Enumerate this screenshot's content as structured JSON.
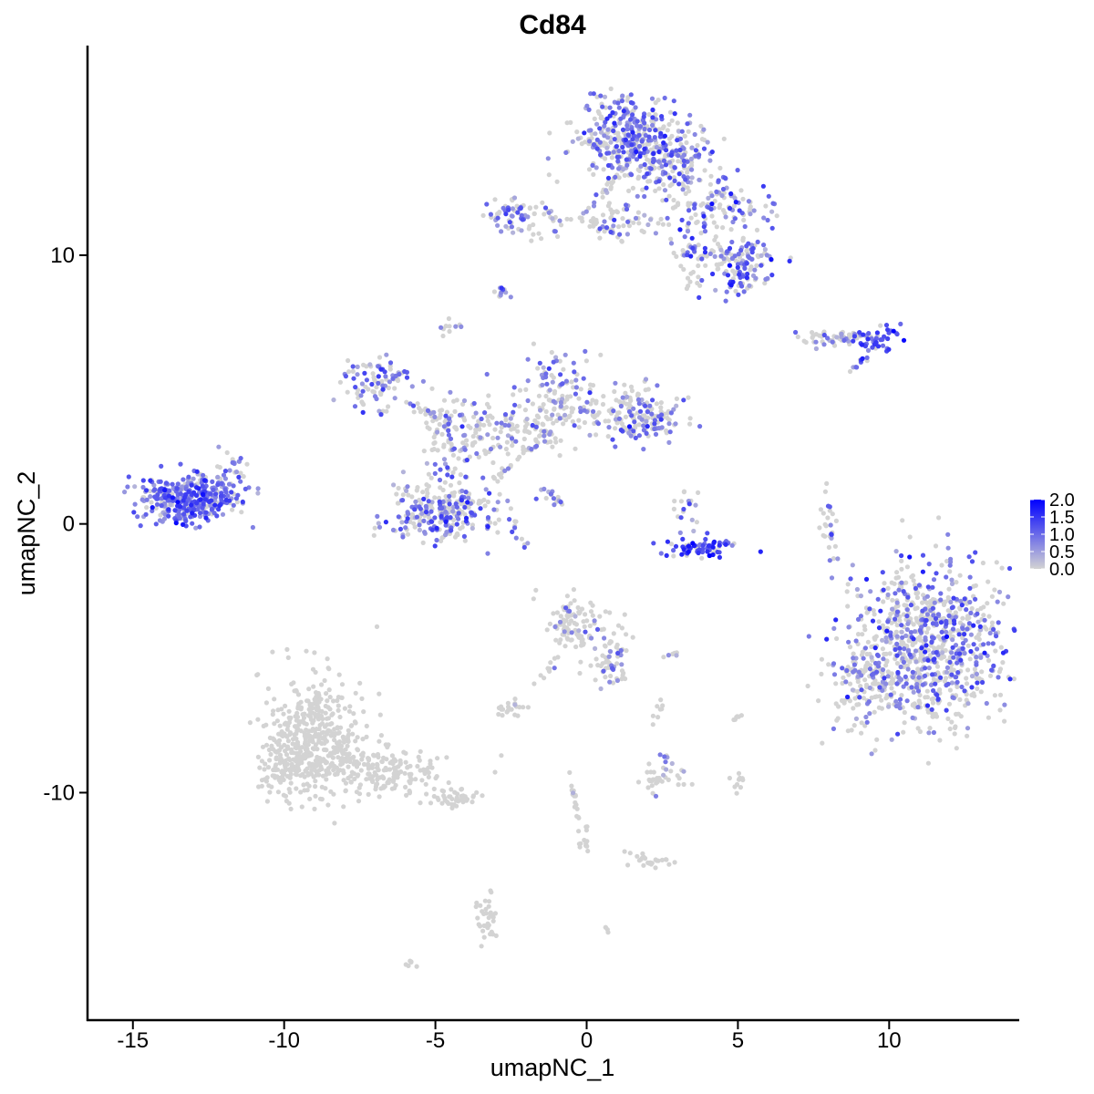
{
  "chart_data": {
    "type": "scatter",
    "title": "Cd84",
    "xlabel": "umapNC_1",
    "ylabel": "umapNC_2",
    "xlim": [
      -16.5,
      14.3
    ],
    "ylim": [
      -18.5,
      17.8
    ],
    "x_ticks": [
      -15,
      -10,
      -5,
      0,
      5,
      10
    ],
    "y_ticks": [
      -10,
      0,
      10
    ],
    "x_tick_labels": [
      "-15",
      "-10",
      "-5",
      "0",
      "5",
      "10"
    ],
    "y_tick_labels": [
      "-10",
      "0",
      "10"
    ],
    "grid": false,
    "legend": {
      "placement": "right",
      "labels": [
        "2.0",
        "1.5",
        "1.0",
        "0.5",
        "0.0"
      ],
      "range": [
        0.0,
        2.0
      ],
      "color_low": "#d3d3d3",
      "color_high": "#0000ff"
    },
    "clusters": [
      {
        "cx": -13.2,
        "cy": 0.9,
        "sx": 0.8,
        "sy": 0.45,
        "n": 360,
        "expr_prob": 0.85,
        "expr_mean": 1.0
      },
      {
        "cx": -11.8,
        "cy": 1.8,
        "sx": 0.4,
        "sy": 0.4,
        "n": 40,
        "expr_prob": 0.7,
        "expr_mean": 0.9
      },
      {
        "cx": -4.8,
        "cy": 0.5,
        "sx": 0.9,
        "sy": 0.55,
        "n": 260,
        "expr_prob": 0.45,
        "expr_mean": 0.9
      },
      {
        "cx": -4.3,
        "cy": 3.2,
        "sx": 0.6,
        "sy": 0.9,
        "n": 110,
        "expr_prob": 0.35,
        "expr_mean": 0.8
      },
      {
        "cx": -7.0,
        "cy": 5.3,
        "sx": 0.6,
        "sy": 0.5,
        "n": 90,
        "expr_prob": 0.6,
        "expr_mean": 0.9
      },
      {
        "cx": -2.0,
        "cy": 3.6,
        "sx": 1.1,
        "sy": 0.5,
        "n": 110,
        "expr_prob": 0.25,
        "expr_mean": 0.8
      },
      {
        "cx": -1.0,
        "cy": 5.3,
        "sx": 0.6,
        "sy": 0.6,
        "n": 70,
        "expr_prob": 0.5,
        "expr_mean": 0.9
      },
      {
        "cx": 0.6,
        "cy": 4.2,
        "sx": 1.2,
        "sy": 0.5,
        "n": 120,
        "expr_prob": 0.25,
        "expr_mean": 0.8
      },
      {
        "cx": 2.0,
        "cy": 4.0,
        "sx": 0.5,
        "sy": 0.5,
        "n": 90,
        "expr_prob": 0.5,
        "expr_mean": 0.9
      },
      {
        "cx": -2.4,
        "cy": 11.5,
        "sx": 0.5,
        "sy": 0.4,
        "n": 60,
        "expr_prob": 0.55,
        "expr_mean": 0.9
      },
      {
        "cx": -1.2,
        "cy": 11.3,
        "sx": 0.4,
        "sy": 0.3,
        "n": 20,
        "expr_prob": 0.3,
        "expr_mean": 0.8
      },
      {
        "cx": 1.2,
        "cy": 14.3,
        "sx": 0.8,
        "sy": 0.8,
        "n": 300,
        "expr_prob": 0.55,
        "expr_mean": 0.9
      },
      {
        "cx": 2.8,
        "cy": 13.5,
        "sx": 0.7,
        "sy": 0.8,
        "n": 200,
        "expr_prob": 0.45,
        "expr_mean": 0.9
      },
      {
        "cx": 1.2,
        "cy": 11.3,
        "sx": 0.8,
        "sy": 0.35,
        "n": 60,
        "expr_prob": 0.4,
        "expr_mean": 0.8
      },
      {
        "cx": 4.5,
        "cy": 11.8,
        "sx": 0.9,
        "sy": 0.4,
        "n": 90,
        "expr_prob": 0.5,
        "expr_mean": 0.9
      },
      {
        "cx": 5.2,
        "cy": 9.7,
        "sx": 0.5,
        "sy": 0.5,
        "n": 110,
        "expr_prob": 0.55,
        "expr_mean": 1.0
      },
      {
        "cx": 3.8,
        "cy": 10.2,
        "sx": 0.6,
        "sy": 0.7,
        "n": 80,
        "expr_prob": 0.4,
        "expr_mean": 0.9
      },
      {
        "cx": -2.8,
        "cy": 8.6,
        "sx": 0.15,
        "sy": 0.1,
        "n": 12,
        "expr_prob": 0.7,
        "expr_mean": 0.9
      },
      {
        "cx": -4.5,
        "cy": 7.3,
        "sx": 0.15,
        "sy": 0.2,
        "n": 10,
        "expr_prob": 0.3,
        "expr_mean": 0.8
      },
      {
        "cx": 8.0,
        "cy": 6.9,
        "sx": 0.6,
        "sy": 0.15,
        "n": 40,
        "expr_prob": 0.3,
        "expr_mean": 0.8
      },
      {
        "cx": 9.6,
        "cy": 6.9,
        "sx": 0.35,
        "sy": 0.25,
        "n": 45,
        "expr_prob": 0.75,
        "expr_mean": 1.2
      },
      {
        "cx": 3.6,
        "cy": -0.9,
        "sx": 0.75,
        "sy": 0.2,
        "n": 70,
        "expr_prob": 0.8,
        "expr_mean": 1.3
      },
      {
        "cx": 3.4,
        "cy": 0.5,
        "sx": 0.3,
        "sy": 0.4,
        "n": 20,
        "expr_prob": 0.35,
        "expr_mean": 0.9
      },
      {
        "cx": 8.0,
        "cy": -0.2,
        "sx": 0.15,
        "sy": 0.7,
        "n": 25,
        "expr_prob": 0.3,
        "expr_mean": 0.8
      },
      {
        "cx": 11.3,
        "cy": -4.5,
        "sx": 1.25,
        "sy": 1.5,
        "n": 850,
        "expr_prob": 0.4,
        "expr_mean": 0.9
      },
      {
        "cx": 9.2,
        "cy": -5.8,
        "sx": 0.6,
        "sy": 0.8,
        "n": 120,
        "expr_prob": 0.25,
        "expr_mean": 0.8
      },
      {
        "cx": -9.0,
        "cy": -7.8,
        "sx": 0.8,
        "sy": 1.2,
        "n": 380,
        "expr_prob": 0.0,
        "expr_mean": 0.0
      },
      {
        "cx": -9.8,
        "cy": -8.9,
        "sx": 0.5,
        "sy": 0.6,
        "n": 120,
        "expr_prob": 0.0,
        "expr_mean": 0.0
      },
      {
        "cx": -6.8,
        "cy": -9.2,
        "sx": 1.0,
        "sy": 0.45,
        "n": 180,
        "expr_prob": 0.0,
        "expr_mean": 0.0
      },
      {
        "cx": -4.4,
        "cy": -10.2,
        "sx": 0.4,
        "sy": 0.2,
        "n": 45,
        "expr_prob": 0.0,
        "expr_mean": 0.0
      },
      {
        "cx": -0.5,
        "cy": -3.7,
        "sx": 0.5,
        "sy": 0.5,
        "n": 90,
        "expr_prob": 0.15,
        "expr_mean": 0.7
      },
      {
        "cx": 0.8,
        "cy": -4.7,
        "sx": 0.4,
        "sy": 0.5,
        "n": 50,
        "expr_prob": 0.2,
        "expr_mean": 0.7
      },
      {
        "cx": -2.5,
        "cy": -6.9,
        "sx": 0.25,
        "sy": 0.15,
        "n": 20,
        "expr_prob": 0.1,
        "expr_mean": 0.6
      },
      {
        "cx": 2.5,
        "cy": -9.5,
        "sx": 0.4,
        "sy": 0.25,
        "n": 35,
        "expr_prob": 0.1,
        "expr_mean": 0.6
      },
      {
        "cx": 2.0,
        "cy": -12.5,
        "sx": 0.4,
        "sy": 0.15,
        "n": 25,
        "expr_prob": 0.0,
        "expr_mean": 0.0
      },
      {
        "cx": -3.3,
        "cy": -14.8,
        "sx": 0.2,
        "sy": 0.5,
        "n": 35,
        "expr_prob": 0.0,
        "expr_mean": 0.0
      },
      {
        "cx": 5.0,
        "cy": -9.6,
        "sx": 0.1,
        "sy": 0.3,
        "n": 10,
        "expr_prob": 0.0,
        "expr_mean": 0.0
      },
      {
        "cx": -5.9,
        "cy": -16.3,
        "sx": 0.1,
        "sy": 0.08,
        "n": 6,
        "expr_prob": 0.0,
        "expr_mean": 0.0
      },
      {
        "cx": 0.7,
        "cy": -15.0,
        "sx": 0.08,
        "sy": 0.08,
        "n": 4,
        "expr_prob": 0.0,
        "expr_mean": 0.0
      }
    ],
    "paths": [
      {
        "x0": -3.2,
        "y0": 1.5,
        "x1": -1.2,
        "y1": 3.5,
        "n": 35,
        "expr_prob": 0.3,
        "expr_mean": 0.8
      },
      {
        "x0": -1.5,
        "y0": 1.4,
        "x1": -0.8,
        "y1": 0.7,
        "n": 15,
        "expr_prob": 0.5,
        "expr_mean": 0.8
      },
      {
        "x0": -6.0,
        "y0": 4.5,
        "x1": -4.5,
        "y1": 3.8,
        "n": 25,
        "expr_prob": 0.2,
        "expr_mean": 0.8
      },
      {
        "x0": -0.3,
        "y0": 11.5,
        "x1": 0.5,
        "y1": 11.0,
        "n": 12,
        "expr_prob": 0.2,
        "expr_mean": 0.7
      },
      {
        "x0": 0.3,
        "y0": 12.0,
        "x1": 1.5,
        "y1": 13.5,
        "n": 20,
        "expr_prob": 0.3,
        "expr_mean": 0.8
      },
      {
        "x0": 8.3,
        "y0": 6.9,
        "x1": 9.3,
        "y1": 7.1,
        "n": 18,
        "expr_prob": 0.5,
        "expr_mean": 0.9
      },
      {
        "x0": 8.8,
        "y0": 5.8,
        "x1": 9.2,
        "y1": 6.2,
        "n": 10,
        "expr_prob": 0.6,
        "expr_mean": 0.9
      },
      {
        "x0": 0.6,
        "y0": -5.2,
        "x1": 1.2,
        "y1": -5.5,
        "n": 12,
        "expr_prob": 0.2,
        "expr_mean": 0.7
      },
      {
        "x0": 0.6,
        "y0": -5.8,
        "x1": 1.3,
        "y1": -5.7,
        "n": 10,
        "expr_prob": 0.1,
        "expr_mean": 0.6
      },
      {
        "x0": -1.0,
        "y0": -5.0,
        "x1": -1.6,
        "y1": -6.0,
        "n": 10,
        "expr_prob": 0.0,
        "expr_mean": 0.0
      },
      {
        "x0": -0.6,
        "y0": -9.3,
        "x1": -0.1,
        "y1": -11.5,
        "n": 20,
        "expr_prob": 0.05,
        "expr_mean": 0.6
      },
      {
        "x0": -0.2,
        "y0": -11.8,
        "x1": 0.0,
        "y1": -12.0,
        "n": 10,
        "expr_prob": 0.0,
        "expr_mean": 0.0
      },
      {
        "x0": 2.3,
        "y0": -7.5,
        "x1": 2.5,
        "y1": -6.5,
        "n": 8,
        "expr_prob": 0.0,
        "expr_mean": 0.0
      },
      {
        "x0": 5.0,
        "y0": -7.0,
        "x1": 5.0,
        "y1": -7.3,
        "n": 6,
        "expr_prob": 0.0,
        "expr_mean": 0.0
      },
      {
        "x0": 2.5,
        "y0": -8.5,
        "x1": 2.7,
        "y1": -8.8,
        "n": 5,
        "expr_prob": 0.5,
        "expr_mean": 0.8
      },
      {
        "x0": -2.0,
        "y0": -1.0,
        "x1": -2.6,
        "y1": 0.5,
        "n": 10,
        "expr_prob": 0.6,
        "expr_mean": 0.9
      },
      {
        "x0": 2.4,
        "y0": -5.1,
        "x1": 3.1,
        "y1": -4.8,
        "n": 6,
        "expr_prob": 0.3,
        "expr_mean": 0.7
      }
    ]
  }
}
